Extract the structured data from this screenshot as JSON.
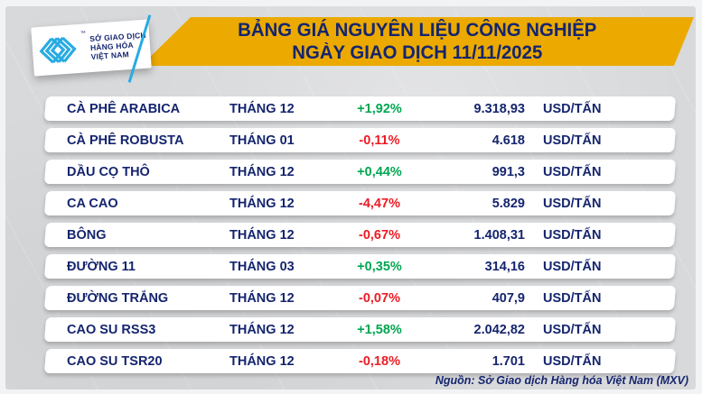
{
  "header": {
    "logo": {
      "line1": "SỞ GIAO DỊCH",
      "line2": "HÀNG HÓA",
      "line3": "VIỆT NAM",
      "trademark": "™"
    },
    "title_line1": "BẢNG GIÁ NGUYÊN LIỆU CÔNG NGHIỆP",
    "title_line2": "NGÀY GIAO DỊCH 11/11/2025"
  },
  "table": {
    "rows": [
      {
        "name": "CÀ PHÊ ARABICA",
        "month": "THÁNG 12",
        "change": "+1,92%",
        "dir": "up",
        "price": "9.318,93",
        "unit": "USD/TẤN"
      },
      {
        "name": "CÀ PHÊ ROBUSTA",
        "month": "THÁNG 01",
        "change": "-0,11%",
        "dir": "down",
        "price": "4.618",
        "unit": "USD/TẤN"
      },
      {
        "name": "DẦU CỌ THÔ",
        "month": "THÁNG 12",
        "change": "+0,44%",
        "dir": "up",
        "price": "991,3",
        "unit": "USD/TẤN"
      },
      {
        "name": "CA CAO",
        "month": "THÁNG 12",
        "change": "-4,47%",
        "dir": "down",
        "price": "5.829",
        "unit": "USD/TẤN"
      },
      {
        "name": "BÔNG",
        "month": "THÁNG 12",
        "change": "-0,67%",
        "dir": "down",
        "price": "1.408,31",
        "unit": "USD/TẤN"
      },
      {
        "name": "ĐƯỜNG 11",
        "month": "THÁNG 03",
        "change": "+0,35%",
        "dir": "up",
        "price": "314,16",
        "unit": "USD/TẤN"
      },
      {
        "name": "ĐƯỜNG TRẮNG",
        "month": "THÁNG 12",
        "change": "-0,07%",
        "dir": "down",
        "price": "407,9",
        "unit": "USD/TẤN"
      },
      {
        "name": "CAO SU RSS3",
        "month": "THÁNG 12",
        "change": "+1,58%",
        "dir": "up",
        "price": "2.042,82",
        "unit": "USD/TẤN"
      },
      {
        "name": "CAO SU TSR20",
        "month": "THÁNG 12",
        "change": "-0,18%",
        "dir": "down",
        "price": "1.701",
        "unit": "USD/TẤN"
      }
    ]
  },
  "footer": {
    "source": "Nguồn: Sở Giao dịch Hàng hóa Việt Nam (MXV)"
  },
  "colors": {
    "banner_yellow": "#ECAA00",
    "navy": "#15256E",
    "up_green": "#00A651",
    "down_red": "#EC1C24",
    "logo_cyan": "#29ABE2",
    "background_gray": "#D8D9DB",
    "row_white": "#FFFFFF"
  }
}
